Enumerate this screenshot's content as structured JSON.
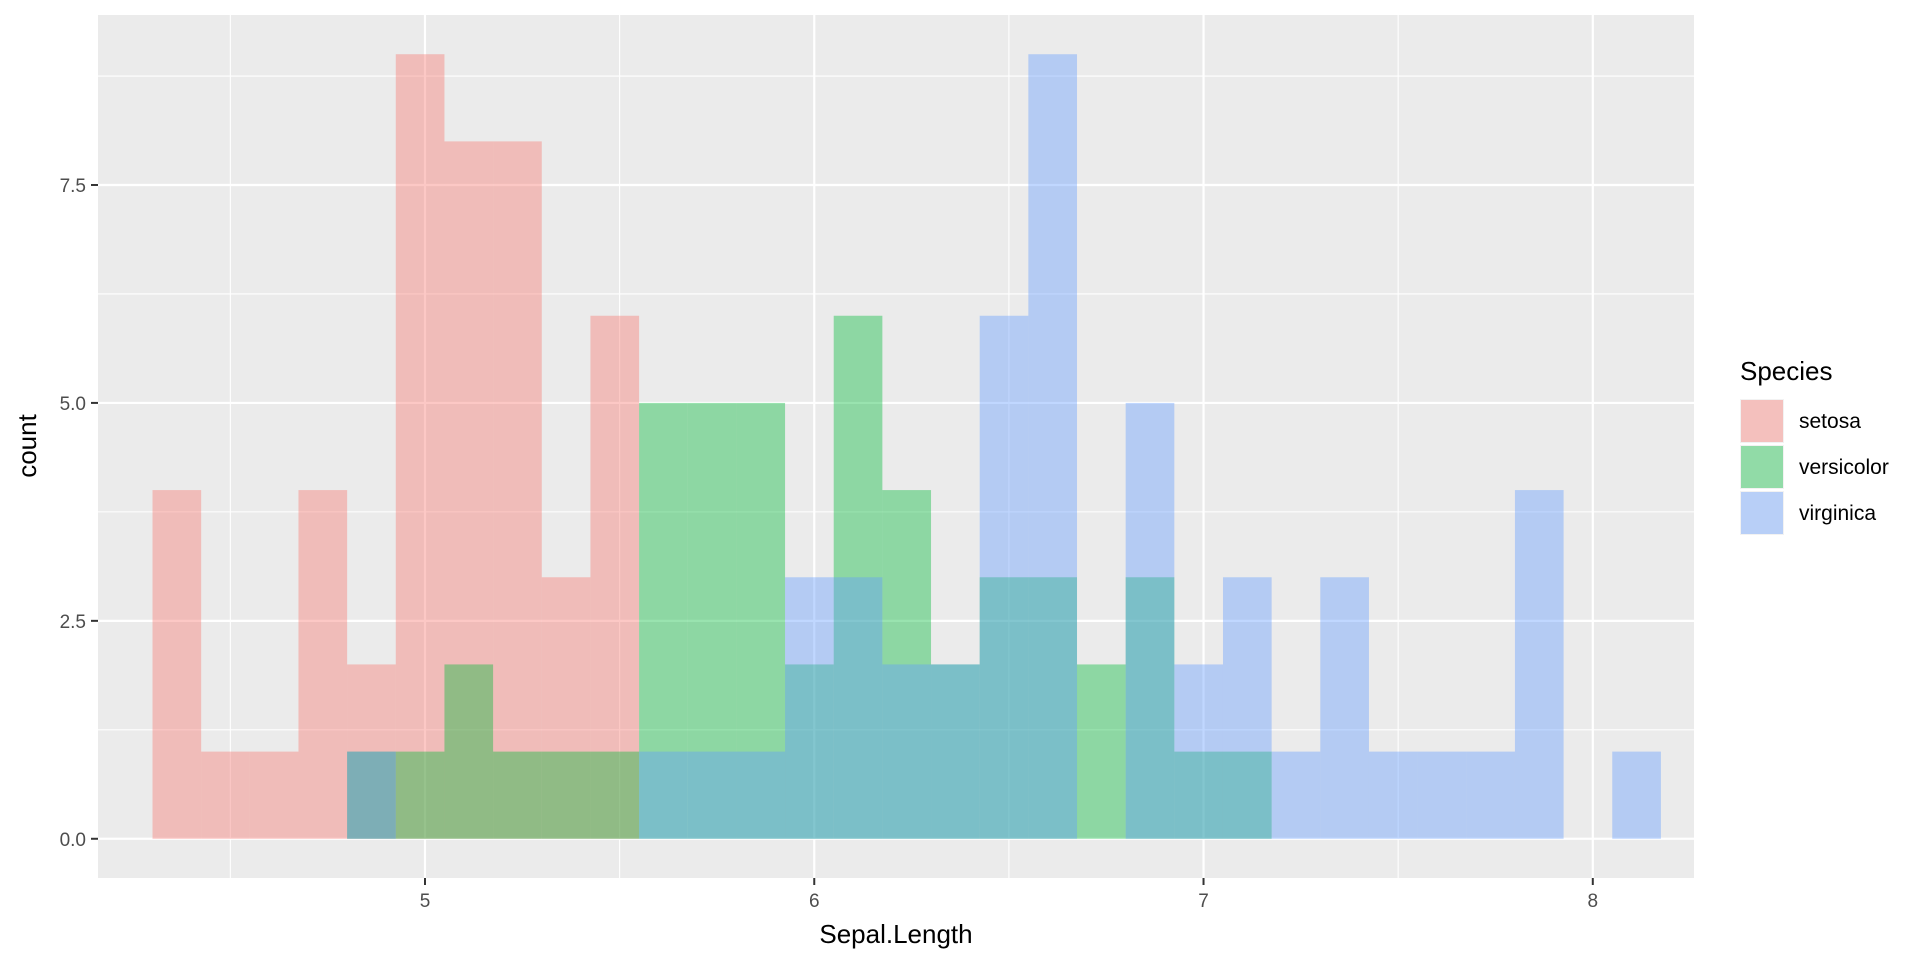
{
  "chart_data": {
    "type": "bar",
    "subtype": "overlapping-histogram",
    "xlabel": "Sepal.Length",
    "ylabel": "count",
    "xlim": [
      4.16,
      8.26
    ],
    "ylim": [
      -0.45,
      9.45
    ],
    "x_ticks": [
      5,
      6,
      7,
      8
    ],
    "x_tick_labels": [
      "5",
      "6",
      "7",
      "8"
    ],
    "y_ticks": [
      0,
      2.5,
      5,
      7.5
    ],
    "y_tick_labels": [
      "0.0",
      "2.5",
      "5.0",
      "7.5"
    ],
    "grid": true,
    "bin_width": 0.125,
    "legend": {
      "title": "Species",
      "position": "right"
    },
    "series": [
      {
        "name": "setosa",
        "color": "#F8766D",
        "bins": [
          {
            "x0": 4.3,
            "x1": 4.425,
            "count": 4
          },
          {
            "x0": 4.425,
            "x1": 4.55,
            "count": 1
          },
          {
            "x0": 4.55,
            "x1": 4.675,
            "count": 1
          },
          {
            "x0": 4.675,
            "x1": 4.8,
            "count": 4
          },
          {
            "x0": 4.8,
            "x1": 4.925,
            "count": 2
          },
          {
            "x0": 4.925,
            "x1": 5.05,
            "count": 9
          },
          {
            "x0": 5.05,
            "x1": 5.175,
            "count": 8
          },
          {
            "x0": 5.175,
            "x1": 5.3,
            "count": 8
          },
          {
            "x0": 5.3,
            "x1": 5.425,
            "count": 3
          },
          {
            "x0": 5.425,
            "x1": 5.55,
            "count": 6
          }
        ]
      },
      {
        "name": "versicolor",
        "color": "#00BA38",
        "bins": [
          {
            "x0": 4.8,
            "x1": 4.925,
            "count": 1
          },
          {
            "x0": 4.925,
            "x1": 5.05,
            "count": 1
          },
          {
            "x0": 5.05,
            "x1": 5.175,
            "count": 2
          },
          {
            "x0": 5.175,
            "x1": 5.3,
            "count": 1
          },
          {
            "x0": 5.3,
            "x1": 5.425,
            "count": 1
          },
          {
            "x0": 5.425,
            "x1": 5.55,
            "count": 1
          },
          {
            "x0": 5.55,
            "x1": 5.675,
            "count": 5
          },
          {
            "x0": 5.675,
            "x1": 5.8,
            "count": 5
          },
          {
            "x0": 5.8,
            "x1": 5.925,
            "count": 5
          },
          {
            "x0": 5.925,
            "x1": 6.05,
            "count": 2
          },
          {
            "x0": 6.05,
            "x1": 6.175,
            "count": 6
          },
          {
            "x0": 6.175,
            "x1": 6.3,
            "count": 4
          },
          {
            "x0": 6.3,
            "x1": 6.425,
            "count": 2
          },
          {
            "x0": 6.425,
            "x1": 6.55,
            "count": 3
          },
          {
            "x0": 6.55,
            "x1": 6.675,
            "count": 3
          },
          {
            "x0": 6.675,
            "x1": 6.8,
            "count": 2
          },
          {
            "x0": 6.8,
            "x1": 6.925,
            "count": 3
          },
          {
            "x0": 6.925,
            "x1": 7.05,
            "count": 1
          },
          {
            "x0": 7.05,
            "x1": 7.175,
            "count": 1
          }
        ]
      },
      {
        "name": "virginica",
        "color": "#619CFF",
        "bins": [
          {
            "x0": 4.8,
            "x1": 4.925,
            "count": 1
          },
          {
            "x0": 5.55,
            "x1": 5.675,
            "count": 1
          },
          {
            "x0": 5.675,
            "x1": 5.8,
            "count": 1
          },
          {
            "x0": 5.8,
            "x1": 5.925,
            "count": 1
          },
          {
            "x0": 5.925,
            "x1": 6.05,
            "count": 3
          },
          {
            "x0": 6.05,
            "x1": 6.175,
            "count": 3
          },
          {
            "x0": 6.175,
            "x1": 6.3,
            "count": 2
          },
          {
            "x0": 6.3,
            "x1": 6.425,
            "count": 2
          },
          {
            "x0": 6.425,
            "x1": 6.55,
            "count": 6
          },
          {
            "x0": 6.55,
            "x1": 6.675,
            "count": 9
          },
          {
            "x0": 6.675,
            "x1": 6.8,
            "count": 0
          },
          {
            "x0": 6.8,
            "x1": 6.925,
            "count": 5
          },
          {
            "x0": 6.925,
            "x1": 7.05,
            "count": 2
          },
          {
            "x0": 7.05,
            "x1": 7.175,
            "count": 3
          },
          {
            "x0": 7.175,
            "x1": 7.3,
            "count": 1
          },
          {
            "x0": 7.3,
            "x1": 7.425,
            "count": 3
          },
          {
            "x0": 7.425,
            "x1": 7.55,
            "count": 1
          },
          {
            "x0": 7.55,
            "x1": 7.675,
            "count": 1
          },
          {
            "x0": 7.675,
            "x1": 7.8,
            "count": 1
          },
          {
            "x0": 7.8,
            "x1": 7.925,
            "count": 4
          },
          {
            "x0": 7.925,
            "x1": 8.05,
            "count": 0
          },
          {
            "x0": 8.05,
            "x1": 8.175,
            "count": 1
          }
        ]
      }
    ]
  }
}
